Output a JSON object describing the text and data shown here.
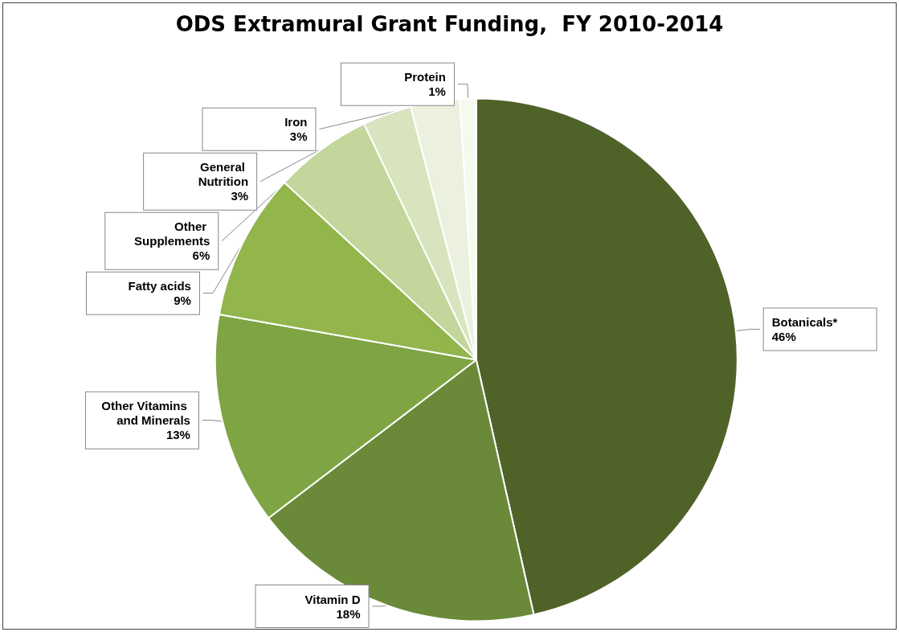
{
  "chart_data": {
    "type": "pie",
    "title": "ODS Extramural Grant Funding,  FY 2010-2014",
    "categories": [
      "Botanicals*",
      "Vitamin D",
      "Other Vitamins and Minerals",
      "Fatty acids",
      "Other Supplements",
      "General Nutrition",
      "Iron",
      "Protein"
    ],
    "values": [
      46,
      18,
      13,
      9,
      6,
      3,
      3,
      1
    ],
    "colors": [
      "#4f6228",
      "#6a8a3a",
      "#7fa443",
      "#92b54c",
      "#c3d69b",
      "#d7e4bd",
      "#ebf1de",
      "#f5f9ee"
    ],
    "value_labels": [
      "46%",
      "18%",
      "13%",
      "9%",
      "6%",
      "3%",
      "3%",
      "1%"
    ],
    "legend": false
  }
}
